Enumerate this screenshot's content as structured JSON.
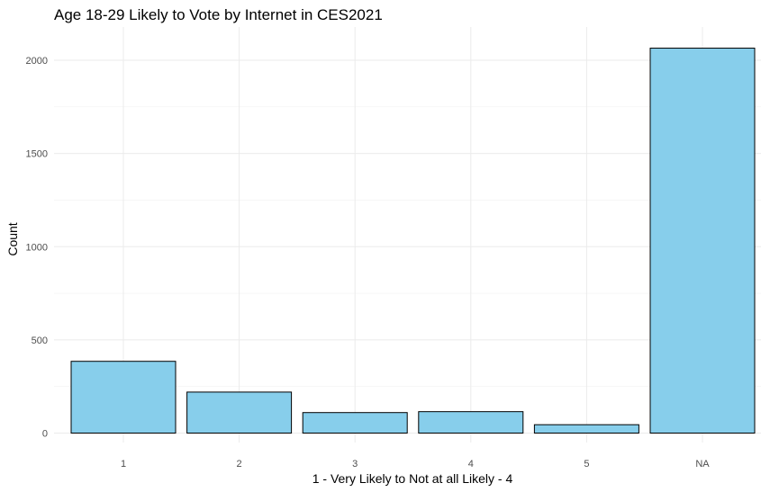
{
  "chart_data": {
    "type": "bar",
    "title": "Age 18-29 Likely to Vote by Internet in CES2021",
    "xlabel": "1 - Very Likely to Not at all Likely - 4",
    "ylabel": "Count",
    "categories": [
      "1",
      "2",
      "3",
      "4",
      "5",
      "NA"
    ],
    "values": [
      385,
      220,
      110,
      115,
      45,
      2065
    ],
    "ylim": [
      0,
      2150
    ],
    "yticks": [
      0,
      500,
      1000,
      1500,
      2000
    ],
    "ytick_labels": [
      "0",
      "500",
      "1000",
      "1500",
      "2000"
    ],
    "grid": true,
    "bar_color": "#87CEEB",
    "bar_edge_color": "#000000"
  }
}
